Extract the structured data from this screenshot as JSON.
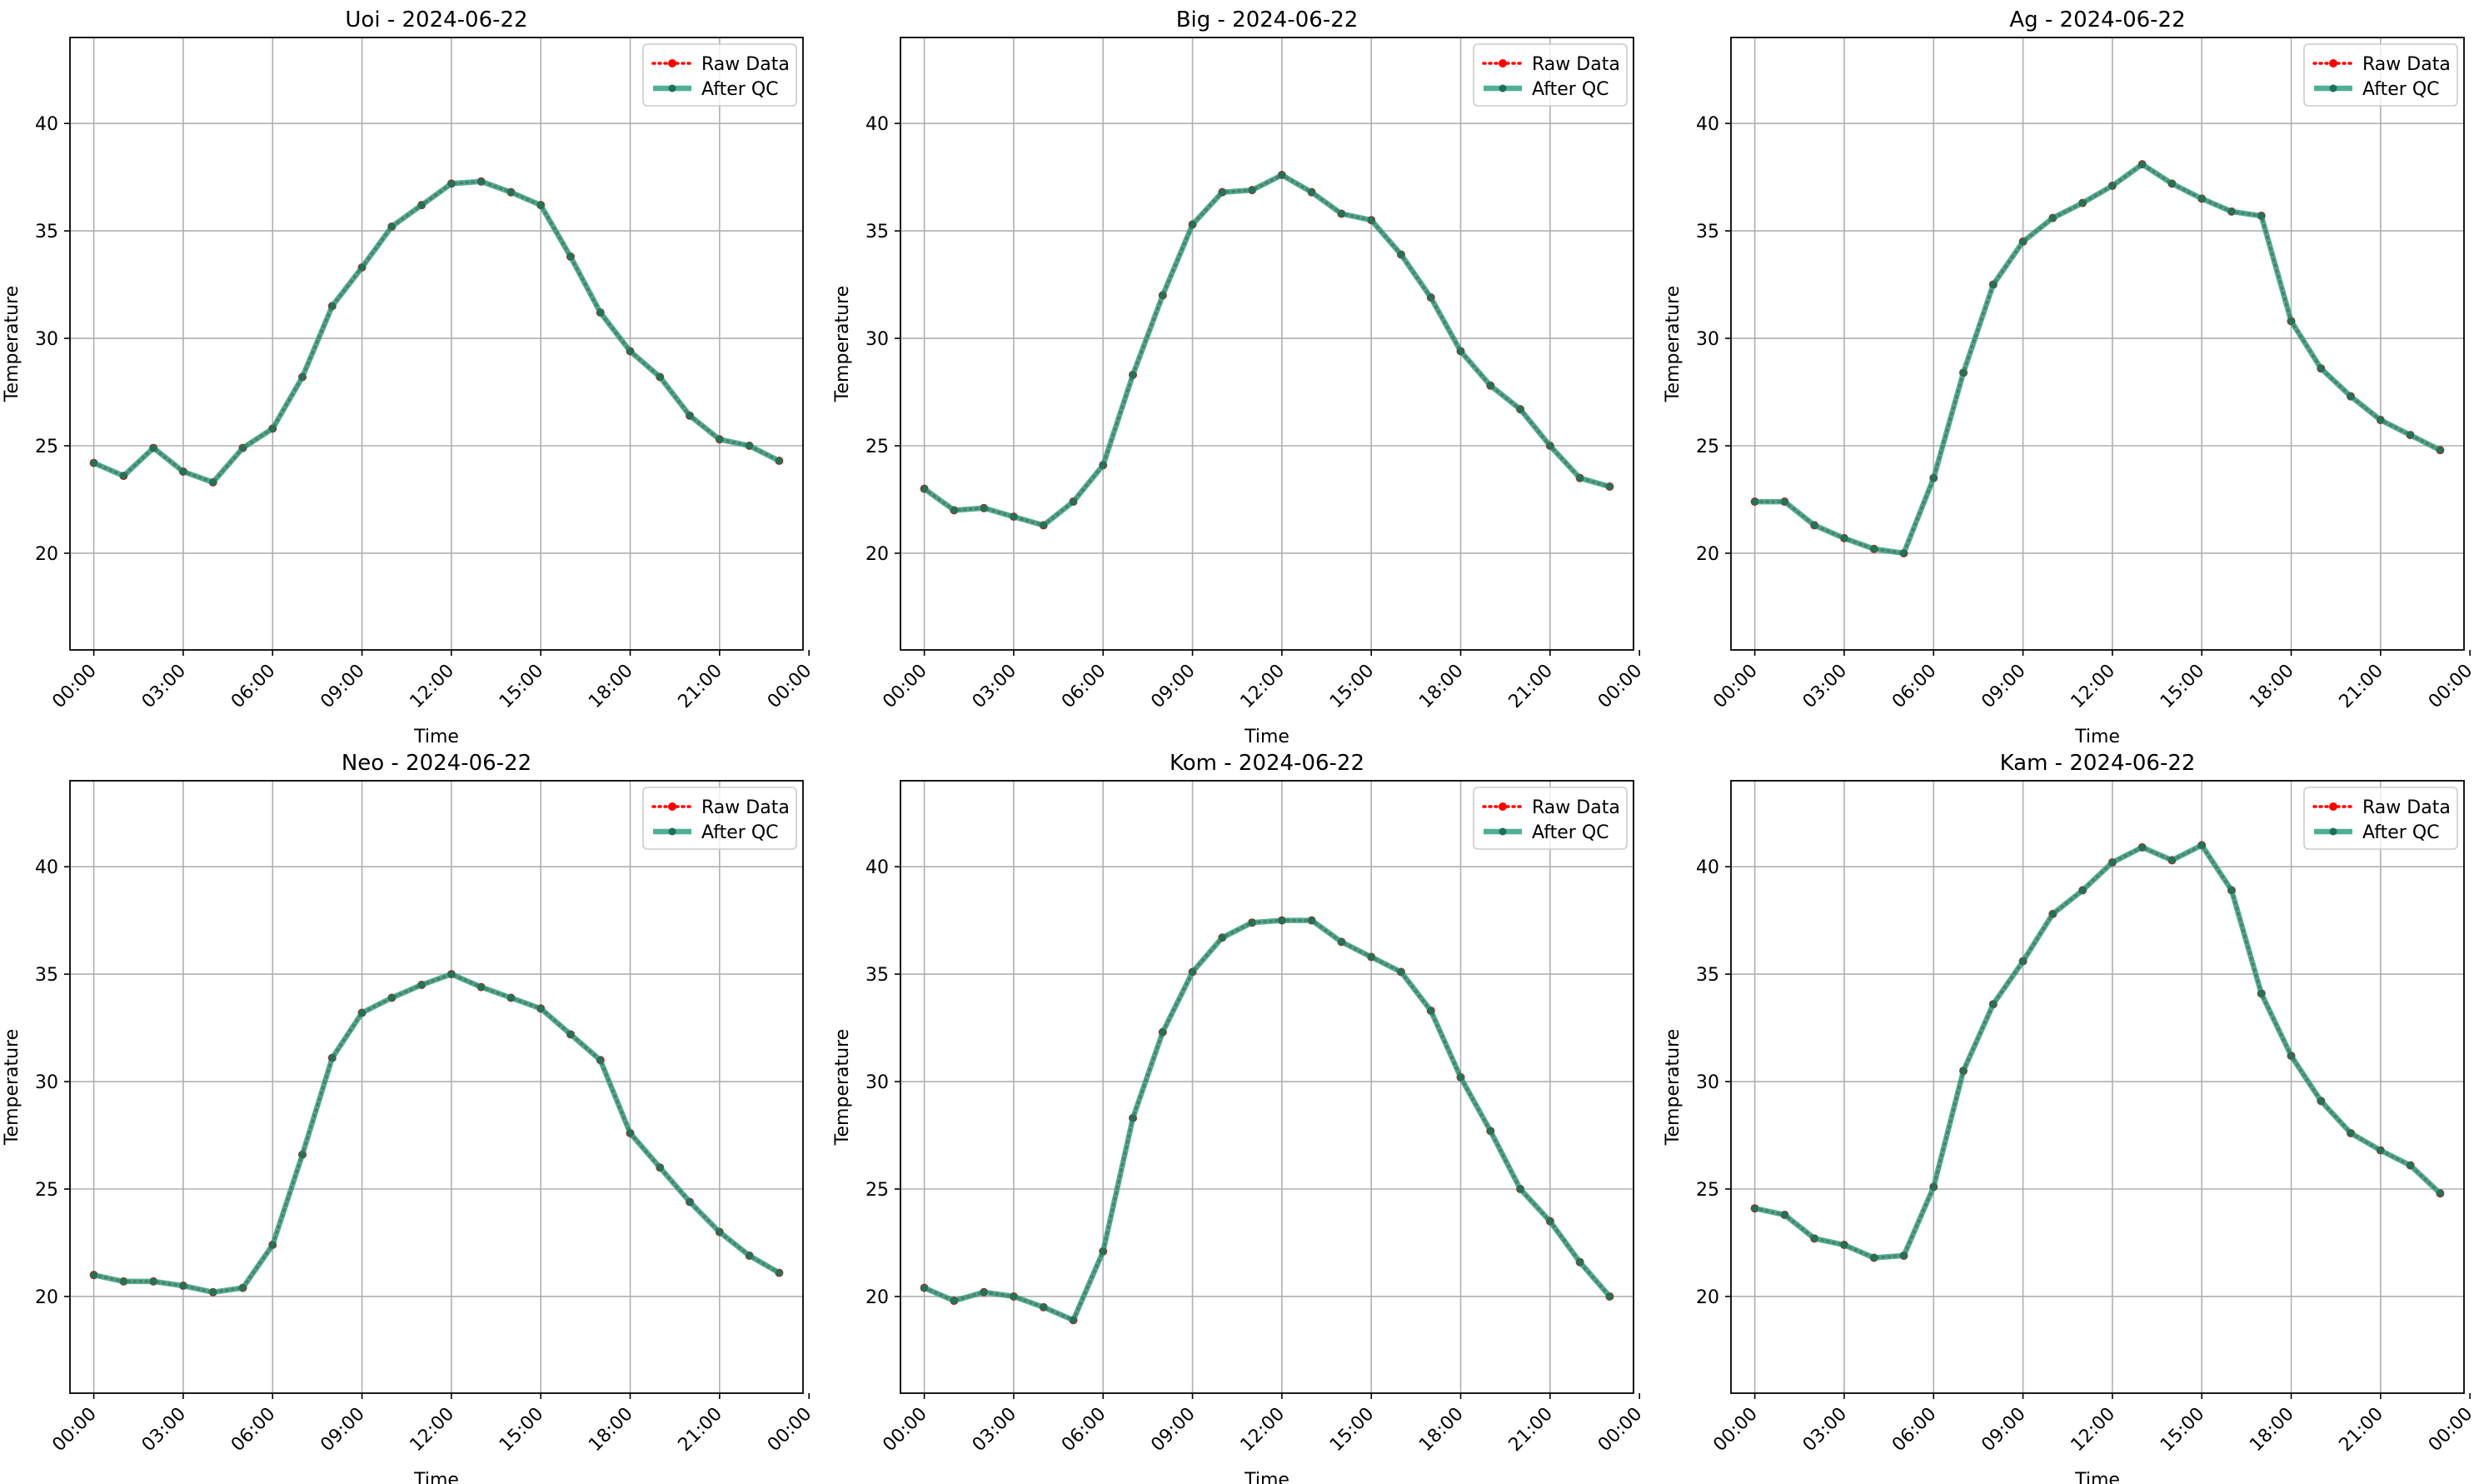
{
  "figure": {
    "background": "#ffffff"
  },
  "style": {
    "raw_color": "#ff0000",
    "qc_color": "#2a9d7e",
    "qc_marker_color": "#1f6f56",
    "grid_color": "#b0b0b0",
    "axis_color": "#000000"
  },
  "legend": {
    "raw": "Raw Data",
    "qc": "After QC",
    "placement": "upper right"
  },
  "chart_data": [
    {
      "type": "line",
      "title": "Uoi - 2024-06-22",
      "xlabel": "Time",
      "ylabel": "Temperature",
      "ylim": [
        15.5,
        44
      ],
      "yticks": [
        20,
        25,
        30,
        35,
        40
      ],
      "xlim": [
        -0.8,
        23.8
      ],
      "xticks": [
        0,
        3,
        6,
        9,
        12,
        15,
        18,
        21,
        24
      ],
      "xticklabels": [
        "00:00",
        "03:00",
        "06:00",
        "09:00",
        "12:00",
        "15:00",
        "18:00",
        "21:00",
        "00:00"
      ],
      "grid": true,
      "legend": "upper right",
      "x": [
        0,
        1,
        2,
        3,
        4,
        5,
        6,
        7,
        8,
        9,
        10,
        11,
        12,
        13,
        14,
        15,
        16,
        17,
        18,
        19,
        20,
        21,
        22,
        23
      ],
      "series": [
        {
          "name": "Raw Data",
          "values": [
            24.2,
            23.6,
            24.9,
            23.8,
            23.3,
            24.9,
            25.8,
            28.2,
            31.5,
            33.3,
            35.2,
            36.2,
            37.2,
            37.3,
            36.8,
            36.2,
            33.8,
            31.2,
            29.4,
            28.2,
            26.4,
            25.3,
            25.0,
            24.3
          ]
        },
        {
          "name": "After QC",
          "values": [
            24.2,
            23.6,
            24.9,
            23.8,
            23.3,
            24.9,
            25.8,
            28.2,
            31.5,
            33.3,
            35.2,
            36.2,
            37.2,
            37.3,
            36.8,
            36.2,
            33.8,
            31.2,
            29.4,
            28.2,
            26.4,
            25.3,
            25.0,
            24.3
          ]
        }
      ]
    },
    {
      "type": "line",
      "title": "Big - 2024-06-22",
      "xlabel": "Time",
      "ylabel": "Temperature",
      "ylim": [
        15.5,
        44
      ],
      "yticks": [
        20,
        25,
        30,
        35,
        40
      ],
      "xlim": [
        -0.8,
        23.8
      ],
      "xticks": [
        0,
        3,
        6,
        9,
        12,
        15,
        18,
        21,
        24
      ],
      "xticklabels": [
        "00:00",
        "03:00",
        "06:00",
        "09:00",
        "12:00",
        "15:00",
        "18:00",
        "21:00",
        "00:00"
      ],
      "grid": true,
      "legend": "upper right",
      "x": [
        0,
        1,
        2,
        3,
        4,
        5,
        6,
        7,
        8,
        9,
        10,
        11,
        12,
        13,
        14,
        15,
        16,
        17,
        18,
        19,
        20,
        21,
        22,
        23
      ],
      "series": [
        {
          "name": "Raw Data",
          "values": [
            23.0,
            22.0,
            22.1,
            21.7,
            21.3,
            22.4,
            24.1,
            28.3,
            32.0,
            35.3,
            36.8,
            36.9,
            37.6,
            36.8,
            35.8,
            35.5,
            33.9,
            31.9,
            29.4,
            27.8,
            26.7,
            25.0,
            23.5,
            23.1
          ]
        },
        {
          "name": "After QC",
          "values": [
            23.0,
            22.0,
            22.1,
            21.7,
            21.3,
            22.4,
            24.1,
            28.3,
            32.0,
            35.3,
            36.8,
            36.9,
            37.6,
            36.8,
            35.8,
            35.5,
            33.9,
            31.9,
            29.4,
            27.8,
            26.7,
            25.0,
            23.5,
            23.1
          ]
        }
      ]
    },
    {
      "type": "line",
      "title": "Ag - 2024-06-22",
      "xlabel": "Time",
      "ylabel": "Temperature",
      "ylim": [
        15.5,
        44
      ],
      "yticks": [
        20,
        25,
        30,
        35,
        40
      ],
      "xlim": [
        -0.8,
        23.8
      ],
      "xticks": [
        0,
        3,
        6,
        9,
        12,
        15,
        18,
        21,
        24
      ],
      "xticklabels": [
        "00:00",
        "03:00",
        "06:00",
        "09:00",
        "12:00",
        "15:00",
        "18:00",
        "21:00",
        "00:00"
      ],
      "grid": true,
      "legend": "upper right",
      "x": [
        0,
        1,
        2,
        3,
        4,
        5,
        6,
        7,
        8,
        9,
        10,
        11,
        12,
        13,
        14,
        15,
        16,
        17,
        18,
        19,
        20,
        21,
        22,
        23
      ],
      "series": [
        {
          "name": "Raw Data",
          "values": [
            22.4,
            22.4,
            21.3,
            20.7,
            20.2,
            20.0,
            23.5,
            28.4,
            32.5,
            34.5,
            35.6,
            36.3,
            37.1,
            38.1,
            37.2,
            36.5,
            35.9,
            35.7,
            30.8,
            28.6,
            27.3,
            26.2,
            25.5,
            24.8
          ]
        },
        {
          "name": "After QC",
          "values": [
            22.4,
            22.4,
            21.3,
            20.7,
            20.2,
            20.0,
            23.5,
            28.4,
            32.5,
            34.5,
            35.6,
            36.3,
            37.1,
            38.1,
            37.2,
            36.5,
            35.9,
            35.7,
            30.8,
            28.6,
            27.3,
            26.2,
            25.5,
            24.8
          ]
        }
      ]
    },
    {
      "type": "line",
      "title": "Neo - 2024-06-22",
      "xlabel": "Time",
      "ylabel": "Temperature",
      "ylim": [
        15.5,
        44
      ],
      "yticks": [
        20,
        25,
        30,
        35,
        40
      ],
      "xlim": [
        -0.8,
        23.8
      ],
      "xticks": [
        0,
        3,
        6,
        9,
        12,
        15,
        18,
        21,
        24
      ],
      "xticklabels": [
        "00:00",
        "03:00",
        "06:00",
        "09:00",
        "12:00",
        "15:00",
        "18:00",
        "21:00",
        "00:00"
      ],
      "grid": true,
      "legend": "upper right",
      "x": [
        0,
        1,
        2,
        3,
        4,
        5,
        6,
        7,
        8,
        9,
        10,
        11,
        12,
        13,
        14,
        15,
        16,
        17,
        18,
        19,
        20,
        21,
        22,
        23
      ],
      "series": [
        {
          "name": "Raw Data",
          "values": [
            21.0,
            20.7,
            20.7,
            20.5,
            20.2,
            20.4,
            22.4,
            26.6,
            31.1,
            33.2,
            33.9,
            34.5,
            35.0,
            34.4,
            33.9,
            33.4,
            32.2,
            31.0,
            27.6,
            26.0,
            24.4,
            23.0,
            21.9,
            21.1
          ]
        },
        {
          "name": "After QC",
          "values": [
            21.0,
            20.7,
            20.7,
            20.5,
            20.2,
            20.4,
            22.4,
            26.6,
            31.1,
            33.2,
            33.9,
            34.5,
            35.0,
            34.4,
            33.9,
            33.4,
            32.2,
            31.0,
            27.6,
            26.0,
            24.4,
            23.0,
            21.9,
            21.1
          ]
        }
      ]
    },
    {
      "type": "line",
      "title": "Kom - 2024-06-22",
      "xlabel": "Time",
      "ylabel": "Temperature",
      "ylim": [
        15.5,
        44
      ],
      "yticks": [
        20,
        25,
        30,
        35,
        40
      ],
      "xlim": [
        -0.8,
        23.8
      ],
      "xticks": [
        0,
        3,
        6,
        9,
        12,
        15,
        18,
        21,
        24
      ],
      "xticklabels": [
        "00:00",
        "03:00",
        "06:00",
        "09:00",
        "12:00",
        "15:00",
        "18:00",
        "21:00",
        "00:00"
      ],
      "grid": true,
      "legend": "upper right",
      "x": [
        0,
        1,
        2,
        3,
        4,
        5,
        6,
        7,
        8,
        9,
        10,
        11,
        12,
        13,
        14,
        15,
        16,
        17,
        18,
        19,
        20,
        21,
        22,
        23
      ],
      "series": [
        {
          "name": "Raw Data",
          "values": [
            20.4,
            19.8,
            20.2,
            20.0,
            19.5,
            18.9,
            22.1,
            28.3,
            32.3,
            35.1,
            36.7,
            37.4,
            37.5,
            37.5,
            36.5,
            35.8,
            35.1,
            33.3,
            30.2,
            27.7,
            25.0,
            23.5,
            21.6,
            20.0
          ]
        },
        {
          "name": "After QC",
          "values": [
            20.4,
            19.8,
            20.2,
            20.0,
            19.5,
            18.9,
            22.1,
            28.3,
            32.3,
            35.1,
            36.7,
            37.4,
            37.5,
            37.5,
            36.5,
            35.8,
            35.1,
            33.3,
            30.2,
            27.7,
            25.0,
            23.5,
            21.6,
            20.0
          ]
        }
      ]
    },
    {
      "type": "line",
      "title": "Kam - 2024-06-22",
      "xlabel": "Time",
      "ylabel": "Temperature",
      "ylim": [
        15.5,
        44
      ],
      "yticks": [
        20,
        25,
        30,
        35,
        40
      ],
      "xlim": [
        -0.8,
        23.8
      ],
      "xticks": [
        0,
        3,
        6,
        9,
        12,
        15,
        18,
        21,
        24
      ],
      "xticklabels": [
        "00:00",
        "03:00",
        "06:00",
        "09:00",
        "12:00",
        "15:00",
        "18:00",
        "21:00",
        "00:00"
      ],
      "grid": true,
      "legend": "upper right",
      "x": [
        0,
        1,
        2,
        3,
        4,
        5,
        6,
        7,
        8,
        9,
        10,
        11,
        12,
        13,
        14,
        15,
        16,
        17,
        18,
        19,
        20,
        21,
        22,
        23
      ],
      "series": [
        {
          "name": "Raw Data",
          "values": [
            24.1,
            23.8,
            22.7,
            22.4,
            21.8,
            21.9,
            25.1,
            30.5,
            33.6,
            35.6,
            37.8,
            38.9,
            40.2,
            40.9,
            40.3,
            41.0,
            38.9,
            34.1,
            31.2,
            29.1,
            27.6,
            26.8,
            26.1,
            24.8
          ]
        },
        {
          "name": "After QC",
          "values": [
            24.1,
            23.8,
            22.7,
            22.4,
            21.8,
            21.9,
            25.1,
            30.5,
            33.6,
            35.6,
            37.8,
            38.9,
            40.2,
            40.9,
            40.3,
            41.0,
            38.9,
            34.1,
            31.2,
            29.1,
            27.6,
            26.8,
            26.1,
            24.8
          ]
        }
      ]
    }
  ]
}
